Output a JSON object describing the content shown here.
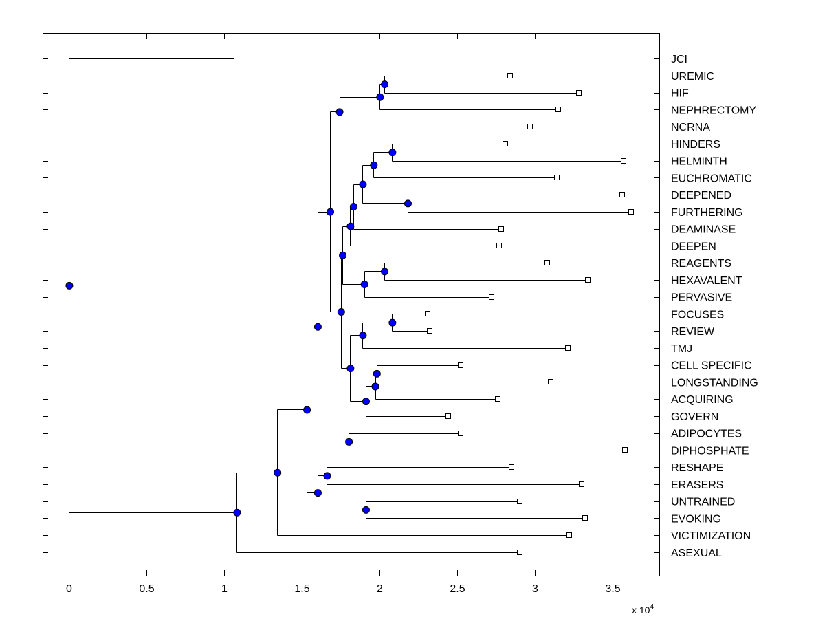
{
  "chart_data": {
    "type": "dendrogram",
    "title": "",
    "xlabel": "",
    "ylabel": "",
    "x_scale_label": "x 10",
    "x_scale_exponent": "4",
    "xlim": [
      -0.17,
      3.8
    ],
    "xticks": [
      {
        "value": 0,
        "label": "0"
      },
      {
        "value": 0.5,
        "label": "0.5"
      },
      {
        "value": 1,
        "label": "1"
      },
      {
        "value": 1.5,
        "label": "1.5"
      },
      {
        "value": 2,
        "label": "2"
      },
      {
        "value": 2.5,
        "label": "2.5"
      },
      {
        "value": 3,
        "label": "3"
      },
      {
        "value": 3.5,
        "label": "3.5"
      }
    ],
    "colors": {
      "node": "#0000ff",
      "leaf": "#ffffff",
      "line": "#000000"
    },
    "leaves": [
      {
        "label": "JCI",
        "x": 1.08
      },
      {
        "label": "UREMIC",
        "x": 2.84
      },
      {
        "label": "HIF",
        "x": 3.28
      },
      {
        "label": "NEPHRECTOMY",
        "x": 3.15
      },
      {
        "label": "NCRNA",
        "x": 2.97
      },
      {
        "label": "HINDERS",
        "x": 2.81
      },
      {
        "label": "HELMINTH",
        "x": 3.57
      },
      {
        "label": "EUCHROMATIC",
        "x": 3.14
      },
      {
        "label": "DEEPENED",
        "x": 3.56
      },
      {
        "label": "FURTHERING",
        "x": 3.62
      },
      {
        "label": "DEAMINASE",
        "x": 2.78
      },
      {
        "label": "DEEPEN",
        "x": 2.77
      },
      {
        "label": "REAGENTS",
        "x": 3.08
      },
      {
        "label": "HEXAVALENT",
        "x": 3.34
      },
      {
        "label": "PERVASIVE",
        "x": 2.72
      },
      {
        "label": "FOCUSES",
        "x": 2.31
      },
      {
        "label": "REVIEW",
        "x": 2.32
      },
      {
        "label": "TMJ",
        "x": 3.21
      },
      {
        "label": "CELL SPECIFIC",
        "x": 2.52
      },
      {
        "label": "LONGSTANDING",
        "x": 3.1
      },
      {
        "label": "ACQUIRING",
        "x": 2.76
      },
      {
        "label": "GOVERN",
        "x": 2.44
      },
      {
        "label": "ADIPOCYTES",
        "x": 2.52
      },
      {
        "label": "DIPHOSPHATE",
        "x": 3.58
      },
      {
        "label": "RESHAPE",
        "x": 2.85
      },
      {
        "label": "ERASERS",
        "x": 3.3
      },
      {
        "label": "UNTRAINED",
        "x": 2.9
      },
      {
        "label": "EVOKING",
        "x": 3.32
      },
      {
        "label": "VICTIMIZATION",
        "x": 3.22
      },
      {
        "label": "ASEXUAL",
        "x": 2.9
      }
    ],
    "nodes": [
      {
        "id": "n_uh",
        "x": 2.03,
        "children": [
          "L1",
          "L2"
        ]
      },
      {
        "id": "n_uhn",
        "x": 2.0,
        "children": [
          "n_uh",
          "L3"
        ]
      },
      {
        "id": "n_top",
        "x": 1.74,
        "children": [
          "n_uhn",
          "L4"
        ]
      },
      {
        "id": "n_hh",
        "x": 2.08,
        "children": [
          "L5",
          "L6"
        ]
      },
      {
        "id": "n_hhe",
        "x": 1.96,
        "children": [
          "n_hh",
          "L7"
        ]
      },
      {
        "id": "n_df",
        "x": 2.18,
        "children": [
          "L8",
          "L9"
        ]
      },
      {
        "id": "n_hd",
        "x": 1.89,
        "children": [
          "n_hhe",
          "n_df"
        ]
      },
      {
        "id": "n_hdd",
        "x": 1.83,
        "children": [
          "n_hd",
          "L10"
        ]
      },
      {
        "id": "n_hde",
        "x": 1.81,
        "children": [
          "n_hdd",
          "L11"
        ]
      },
      {
        "id": "n_rh",
        "x": 2.03,
        "children": [
          "L12",
          "L13"
        ]
      },
      {
        "id": "n_rhp",
        "x": 1.9,
        "children": [
          "n_rh",
          "L14"
        ]
      },
      {
        "id": "n_blkA",
        "x": 1.76,
        "children": [
          "n_hde",
          "n_rhp"
        ]
      },
      {
        "id": "n_fr",
        "x": 2.08,
        "children": [
          "L15",
          "L16"
        ]
      },
      {
        "id": "n_frt",
        "x": 1.89,
        "children": [
          "n_fr",
          "L17"
        ]
      },
      {
        "id": "n_cl",
        "x": 1.98,
        "children": [
          "L18",
          "L19"
        ]
      },
      {
        "id": "n_cla",
        "x": 1.97,
        "children": [
          "n_cl",
          "L20"
        ]
      },
      {
        "id": "n_clag",
        "x": 1.91,
        "children": [
          "n_cla",
          "L21"
        ]
      },
      {
        "id": "n_blkB",
        "x": 1.81,
        "children": [
          "n_frt",
          "n_clag"
        ]
      },
      {
        "id": "n_mid",
        "x": 1.75,
        "children": [
          "n_blkA",
          "n_blkB"
        ]
      },
      {
        "id": "n_upper",
        "x": 1.68,
        "children": [
          "n_top",
          "n_mid"
        ]
      },
      {
        "id": "n_ad",
        "x": 1.8,
        "children": [
          "L22",
          "L23"
        ]
      },
      {
        "id": "n_big",
        "x": 1.6,
        "children": [
          "n_upper",
          "n_ad"
        ]
      },
      {
        "id": "n_re",
        "x": 1.66,
        "children": [
          "L24",
          "L25"
        ]
      },
      {
        "id": "n_ue",
        "x": 1.91,
        "children": [
          "L26",
          "L27"
        ]
      },
      {
        "id": "n_reue",
        "x": 1.6,
        "children": [
          "n_re",
          "n_ue"
        ]
      },
      {
        "id": "n_1",
        "x": 1.53,
        "children": [
          "n_big",
          "n_reue"
        ]
      },
      {
        "id": "n_2",
        "x": 1.34,
        "children": [
          "n_1",
          "L28"
        ]
      },
      {
        "id": "n_3",
        "x": 1.08,
        "children": [
          "n_2",
          "L29"
        ]
      },
      {
        "id": "n_root",
        "x": 0.0,
        "children": [
          "L0",
          "n_3"
        ]
      }
    ],
    "root": "n_root"
  }
}
